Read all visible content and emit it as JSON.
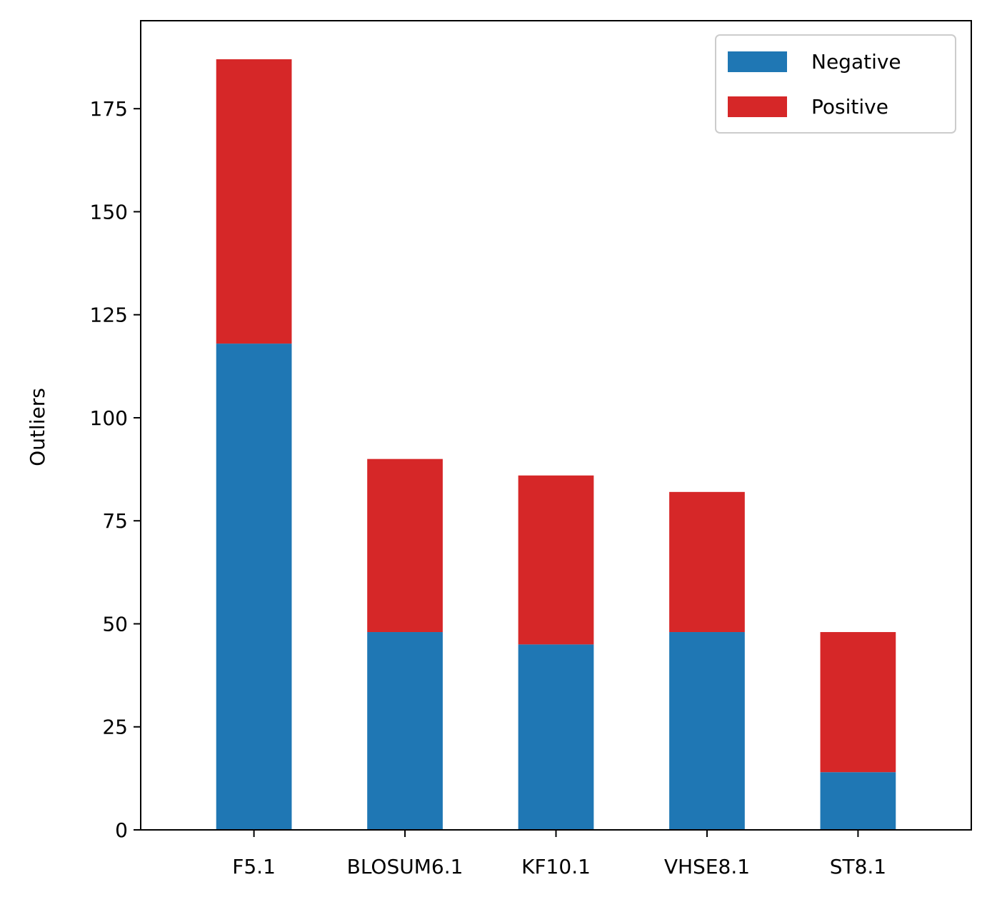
{
  "chart_data": {
    "type": "bar",
    "stacked": true,
    "categories": [
      "F5.1",
      "BLOSUM6.1",
      "KF10.1",
      "VHSE8.1",
      "ST8.1"
    ],
    "series": [
      {
        "name": "Negative",
        "color": "#1f77b4",
        "values": [
          118,
          48,
          45,
          48,
          14
        ]
      },
      {
        "name": "Positive",
        "color": "#d62728",
        "values": [
          69,
          42,
          41,
          34,
          34
        ]
      }
    ],
    "title": "",
    "xlabel": "",
    "ylabel": "Outliers",
    "ylim": [
      0,
      196.35
    ],
    "yticks": [
      0,
      25,
      50,
      75,
      100,
      125,
      150,
      175
    ],
    "grid": false,
    "legend_position": "top-right"
  }
}
